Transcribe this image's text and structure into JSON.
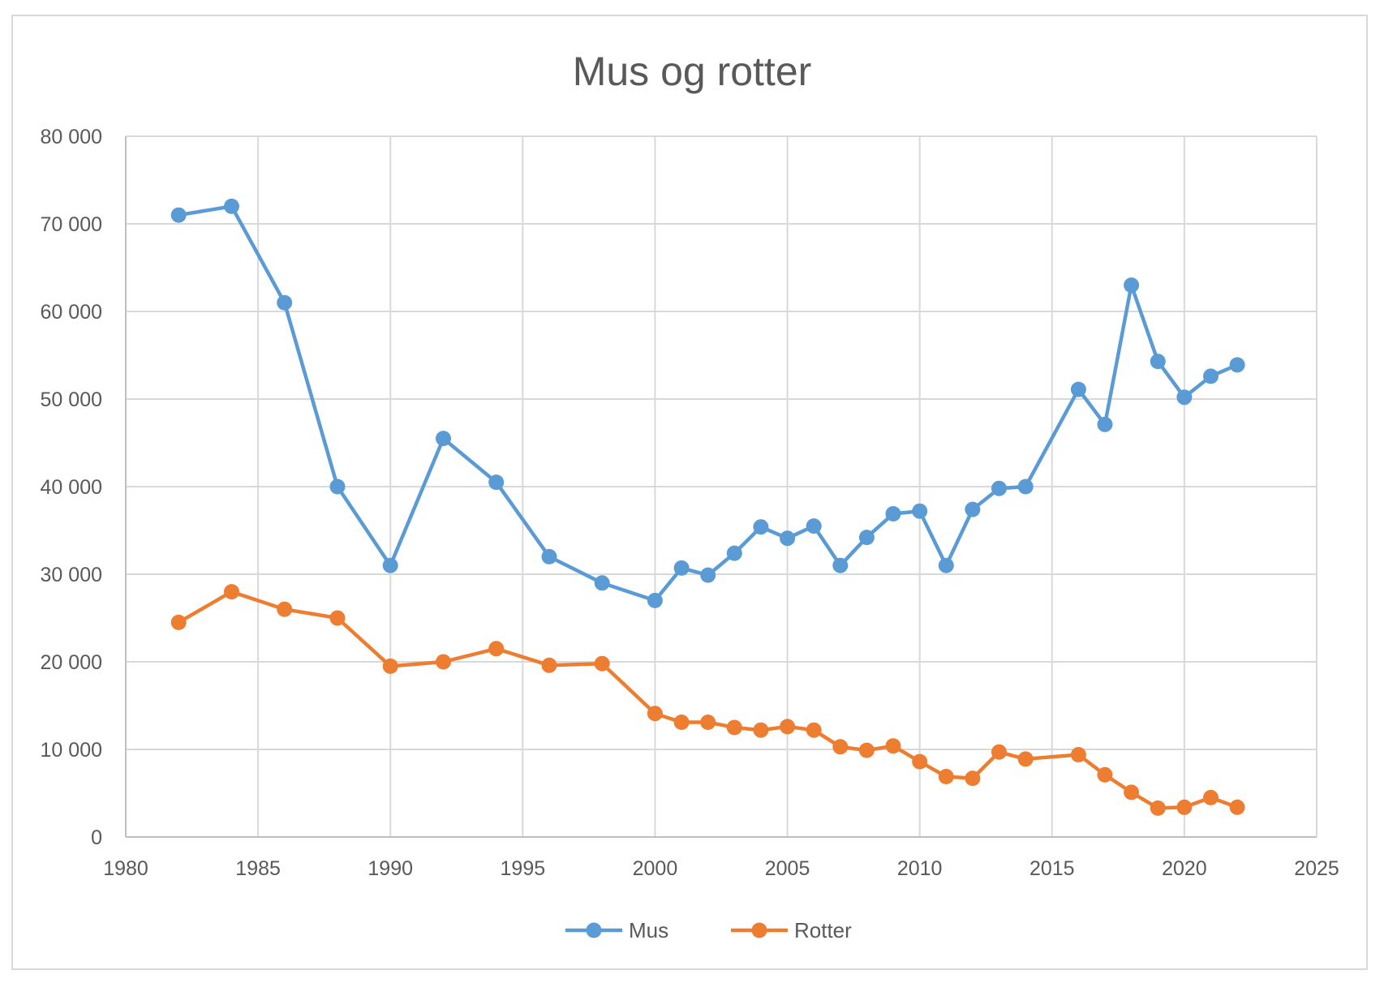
{
  "chart_data": {
    "type": "scatter",
    "title": "Mus og rotter",
    "xlabel": "",
    "ylabel": "",
    "xlim": [
      1980,
      2025
    ],
    "ylim": [
      0,
      80000
    ],
    "x_ticks": [
      1980,
      1985,
      1990,
      1995,
      2000,
      2005,
      2010,
      2015,
      2020,
      2025
    ],
    "x_tick_labels": [
      "1980",
      "1985",
      "1990",
      "1995",
      "2000",
      "2005",
      "2010",
      "2015",
      "2020",
      "2025"
    ],
    "y_ticks": [
      0,
      10000,
      20000,
      30000,
      40000,
      50000,
      60000,
      70000,
      80000
    ],
    "y_tick_labels": [
      "0",
      "10 000",
      "20 000",
      "30 000",
      "40 000",
      "50 000",
      "60 000",
      "70 000",
      "80 000"
    ],
    "grid": true,
    "legend_position": "bottom",
    "series": [
      {
        "name": "Mus",
        "color": "#5b9bd5",
        "points": [
          [
            1982,
            71000
          ],
          [
            1984,
            72000
          ],
          [
            1986,
            61000
          ],
          [
            1988,
            40000
          ],
          [
            1990,
            31000
          ],
          [
            1992,
            45500
          ],
          [
            1994,
            40500
          ],
          [
            1996,
            32000
          ],
          [
            1998,
            29000
          ],
          [
            2000,
            27000
          ],
          [
            2001,
            30700
          ],
          [
            2002,
            29900
          ],
          [
            2003,
            32400
          ],
          [
            2004,
            35400
          ],
          [
            2005,
            34100
          ],
          [
            2006,
            35500
          ],
          [
            2007,
            31000
          ],
          [
            2008,
            34200
          ],
          [
            2009,
            36900
          ],
          [
            2010,
            37200
          ],
          [
            2011,
            31000
          ],
          [
            2012,
            37400
          ],
          [
            2013,
            39800
          ],
          [
            2014,
            40000
          ],
          [
            2016,
            51100
          ],
          [
            2017,
            47100
          ],
          [
            2018,
            63000
          ],
          [
            2019,
            54300
          ],
          [
            2020,
            50200
          ],
          [
            2021,
            52600
          ],
          [
            2022,
            53900
          ]
        ]
      },
      {
        "name": "Rotter",
        "color": "#ed7d31",
        "points": [
          [
            1982,
            24500
          ],
          [
            1984,
            28000
          ],
          [
            1986,
            26000
          ],
          [
            1988,
            25000
          ],
          [
            1990,
            19500
          ],
          [
            1992,
            20000
          ],
          [
            1994,
            21500
          ],
          [
            1996,
            19600
          ],
          [
            1998,
            19800
          ],
          [
            2000,
            14100
          ],
          [
            2001,
            13100
          ],
          [
            2002,
            13100
          ],
          [
            2003,
            12500
          ],
          [
            2004,
            12200
          ],
          [
            2005,
            12600
          ],
          [
            2006,
            12200
          ],
          [
            2007,
            10300
          ],
          [
            2008,
            9900
          ],
          [
            2009,
            10400
          ],
          [
            2010,
            8600
          ],
          [
            2011,
            6900
          ],
          [
            2012,
            6700
          ],
          [
            2013,
            9700
          ],
          [
            2014,
            8900
          ],
          [
            2016,
            9400
          ],
          [
            2017,
            7100
          ],
          [
            2018,
            5100
          ],
          [
            2019,
            3300
          ],
          [
            2020,
            3400
          ],
          [
            2021,
            4500
          ],
          [
            2022,
            3400
          ]
        ]
      }
    ]
  }
}
